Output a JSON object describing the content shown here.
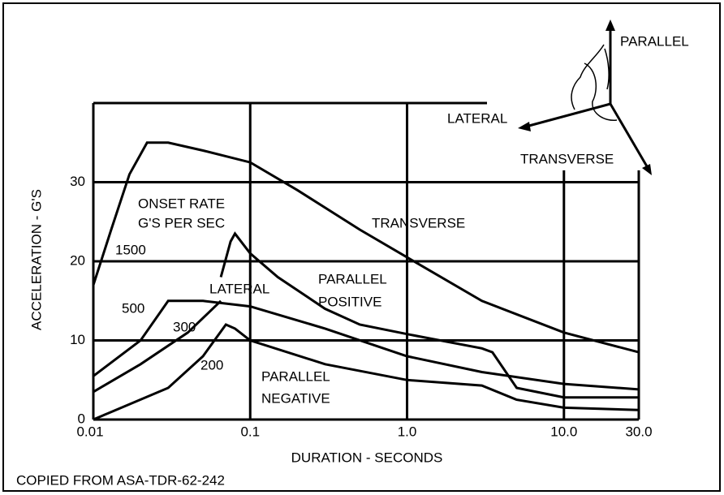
{
  "chart_data": {
    "type": "line",
    "x_label": "DURATION - SECONDS",
    "y_label": "ACCELERATION - G'S",
    "note": "COPIED FROM ASA-TDR-62-242",
    "xscale": "log",
    "xlim": [
      0.01,
      30
    ],
    "ylim": [
      0,
      40
    ],
    "xticks": [
      0.01,
      0.1,
      {
        "value": 1,
        "label": "1.0"
      },
      {
        "value": 10,
        "label": "10.0"
      },
      {
        "value": 30,
        "label": "30.0"
      }
    ],
    "yticks": [
      0,
      10,
      20,
      30
    ],
    "grid": true,
    "series": [
      {
        "name": "1500",
        "color": "#000000",
        "x": [
          0.01,
          0.013,
          0.017,
          0.022,
          0.03,
          0.05,
          0.1,
          0.2,
          0.5,
          1,
          3,
          10,
          30
        ],
        "values": [
          17,
          24,
          31,
          35,
          35,
          34,
          32.5,
          29,
          24,
          20.5,
          15,
          11,
          8.5
        ]
      },
      {
        "name": "LATERAL",
        "color": "#000000",
        "x": [
          0.065,
          0.075,
          0.08,
          0.1,
          0.15,
          0.3,
          0.5,
          1,
          3,
          3.5,
          5,
          10,
          30
        ],
        "values": [
          18,
          22.5,
          23.5,
          21,
          18,
          14,
          12,
          10.8,
          9,
          8.5,
          4,
          2.8,
          2.8
        ]
      },
      {
        "name": "500",
        "color": "#000000",
        "x": [
          0.01,
          0.02,
          0.03,
          0.05,
          0.1,
          0.3,
          1,
          3,
          10,
          30
        ],
        "values": [
          5.5,
          10,
          15,
          15,
          14.3,
          11.5,
          8,
          6,
          4.5,
          3.8
        ]
      },
      {
        "name": "300",
        "color": "#000000",
        "x": [
          0.01,
          0.02,
          0.04,
          0.065
        ],
        "values": [
          3.5,
          7,
          11,
          15
        ]
      },
      {
        "name": "200",
        "color": "#000000",
        "x": [
          0.01,
          0.03,
          0.05,
          0.07,
          0.08,
          0.1,
          0.3,
          1,
          3,
          5,
          10,
          30
        ],
        "values": [
          0,
          4,
          8,
          12,
          11.5,
          10,
          7,
          5,
          4.3,
          2.5,
          1.5,
          1.2
        ]
      }
    ],
    "annotations": [
      "ONSET RATE",
      "G'S PER SEC",
      "TRANSVERSE",
      "PARALLEL",
      "POSITIVE",
      "PARALLEL",
      "NEGATIVE"
    ],
    "axes_figure": [
      "PARALLEL",
      "LATERAL",
      "TRANSVERSE"
    ]
  }
}
